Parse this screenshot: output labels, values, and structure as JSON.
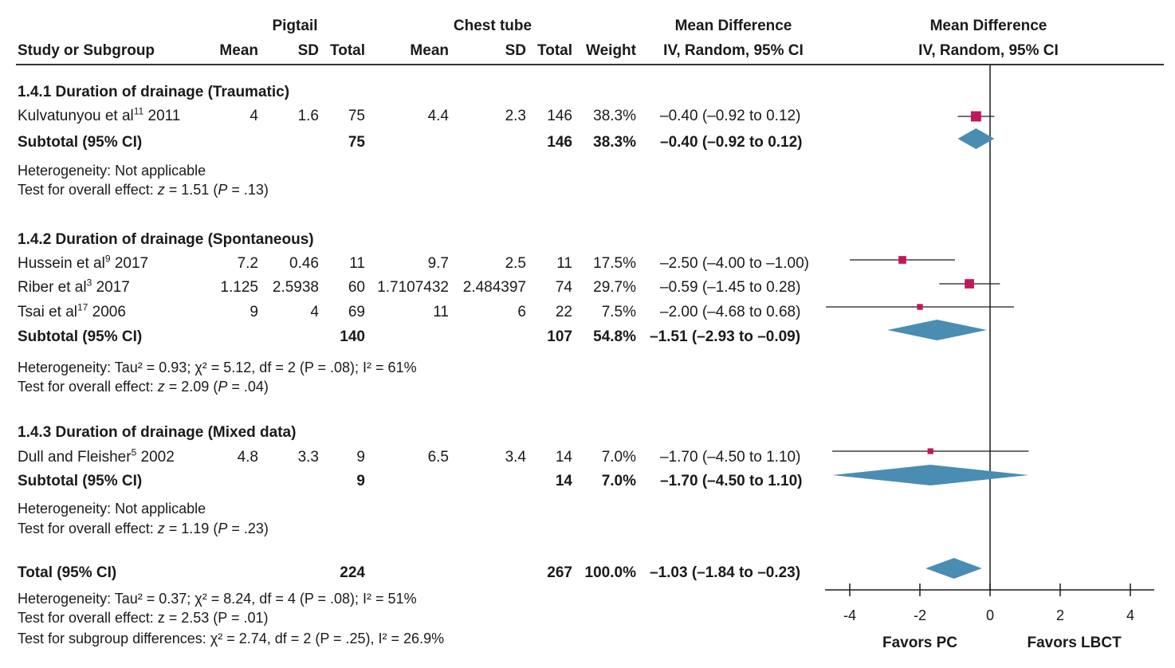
{
  "header": {
    "group_pc": "Pigtail",
    "group_ct": "Chest tube",
    "md_left": "Mean Difference",
    "md_right": "Mean Difference",
    "col_study": "Study or Subgroup",
    "col_mean_pc": "Mean",
    "col_sd_pc": "SD",
    "col_total_pc": "Total",
    "col_mean_ct": "Mean",
    "col_sd_ct": "SD",
    "col_total_ct": "Total",
    "col_weight": "Weight",
    "col_ci_left": "IV, Random, 95% CI",
    "col_ci_right": "IV, Random, 95% CI"
  },
  "groups": [
    {
      "title": "1.4.1 Duration of drainage (Traumatic)",
      "studies": [
        {
          "name": "Kulvatunyou et al",
          "ref": "11",
          "year": "2011",
          "mean_pc": "4",
          "sd_pc": "1.6",
          "total_pc": "75",
          "mean_ct": "4.4",
          "sd_ct": "2.3",
          "total_ct": "146",
          "weight": "38.3%",
          "ci_text": "–0.40 (–0.92 to 0.12)"
        }
      ],
      "subtotal": {
        "label": "Subtotal (95% CI)",
        "total_pc": "75",
        "total_ct": "146",
        "weight": "38.3%",
        "ci_text": "–0.40 (–0.92 to 0.12)"
      },
      "het_prefix": "Heterogeneity: ",
      "het_text": "Not applicable",
      "test_prefix": "Test for overall effect: ",
      "test_z": "1.51",
      "test_p": ".13"
    },
    {
      "title": "1.4.2 Duration of drainage (Spontaneous)",
      "studies": [
        {
          "name": "Hussein et al",
          "ref": "9",
          "year": "2017",
          "mean_pc": "7.2",
          "sd_pc": "0.46",
          "total_pc": "11",
          "mean_ct": "9.7",
          "sd_ct": "2.5",
          "total_ct": "11",
          "weight": "17.5%",
          "ci_text": "–2.50 (–4.00 to –1.00)"
        },
        {
          "name": "Riber et al",
          "ref": "3",
          "year": "2017",
          "mean_pc": "1.125",
          "sd_pc": "2.5938",
          "total_pc": "60",
          "mean_ct": "1.7107432",
          "sd_ct": "2.484397",
          "total_ct": "74",
          "weight": "29.7%",
          "ci_text": "–0.59 (–1.45 to 0.28)"
        },
        {
          "name": "Tsai et al",
          "ref": "17",
          "year": "2006",
          "mean_pc": "9",
          "sd_pc": "4",
          "total_pc": "69",
          "mean_ct": "11",
          "sd_ct": "6",
          "total_ct": "22",
          "weight": "7.5%",
          "ci_text": "–2.00 (–4.68 to 0.68)"
        }
      ],
      "subtotal": {
        "label": "Subtotal (95% CI)",
        "total_pc": "140",
        "total_ct": "107",
        "weight": "54.8%",
        "ci_text": "–1.51 (–2.93 to –0.09)"
      },
      "het_prefix": "Heterogeneity: ",
      "het_text": "Tau² = 0.93; χ² = 5.12, df = 2 (P = .08); I² = 61%",
      "test_prefix": "Test for overall effect: ",
      "test_z": "2.09",
      "test_p": ".04"
    },
    {
      "title": "1.4.3 Duration of drainage (Mixed data)",
      "studies": [
        {
          "name": "Dull and Fleisher",
          "ref": "5",
          "year": "2002",
          "mean_pc": "4.8",
          "sd_pc": "3.3",
          "total_pc": "9",
          "mean_ct": "6.5",
          "sd_ct": "3.4",
          "total_ct": "14",
          "weight": "7.0%",
          "ci_text": "–1.70 (–4.50 to 1.10)"
        }
      ],
      "subtotal": {
        "label": "Subtotal (95% CI)",
        "total_pc": "9",
        "total_ct": "14",
        "weight": "7.0%",
        "ci_text": "–1.70 (–4.50 to 1.10)"
      },
      "het_prefix": "Heterogeneity: ",
      "het_text": "Not applicable",
      "test_prefix": "Test for overall effect: ",
      "test_z": "1.19",
      "test_p": ".23"
    }
  ],
  "total": {
    "label": "Total (95% CI)",
    "total_pc": "224",
    "total_ct": "267",
    "weight": "100.0%",
    "ci_text": "–1.03 (–1.84 to –0.23)",
    "het_line": "Heterogeneity: Tau² = 0.37; χ² = 8.24, df = 4 (P = .08); I² = 51%",
    "test_line": "Test for overall effect: z = 2.53 (P = .01)",
    "subgroup_line": "Test for subgroup differences: χ² = 2.74, df = 2 (P = .25), I² = 26.9%"
  },
  "chart_data": {
    "type": "forest",
    "xlabel_left": "Favors PC",
    "xlabel_right": "Favors LBCT",
    "xlim": [
      -4,
      4
    ],
    "ticks": [
      "-4",
      "-2",
      "0",
      "2",
      "4"
    ],
    "null_line": 0,
    "colors": {
      "square": "#c0185a",
      "diamond": "#4a8db3",
      "line": "#1a1a1a"
    },
    "points": [
      {
        "study": "Kulvatunyou et al 2011",
        "md": -0.4,
        "lo": -0.92,
        "hi": 0.12,
        "weight": 38.3
      },
      {
        "study": "Hussein et al 2017",
        "md": -2.5,
        "lo": -4.0,
        "hi": -1.0,
        "weight": 17.5
      },
      {
        "study": "Riber et al 2017",
        "md": -0.59,
        "lo": -1.45,
        "hi": 0.28,
        "weight": 29.7
      },
      {
        "study": "Tsai et al 2006",
        "md": -2.0,
        "lo": -4.68,
        "hi": 0.68,
        "weight": 7.5
      },
      {
        "study": "Dull and Fleisher 2002",
        "md": -1.7,
        "lo": -4.5,
        "hi": 1.1,
        "weight": 7.0
      }
    ],
    "diamonds": [
      {
        "label": "Subtotal 1.4.1",
        "md": -0.4,
        "lo": -0.92,
        "hi": 0.12
      },
      {
        "label": "Subtotal 1.4.2",
        "md": -1.51,
        "lo": -2.93,
        "hi": -0.09
      },
      {
        "label": "Subtotal 1.4.3",
        "md": -1.7,
        "lo": -4.5,
        "hi": 1.1
      },
      {
        "label": "Total",
        "md": -1.03,
        "lo": -1.84,
        "hi": -0.23
      }
    ]
  }
}
